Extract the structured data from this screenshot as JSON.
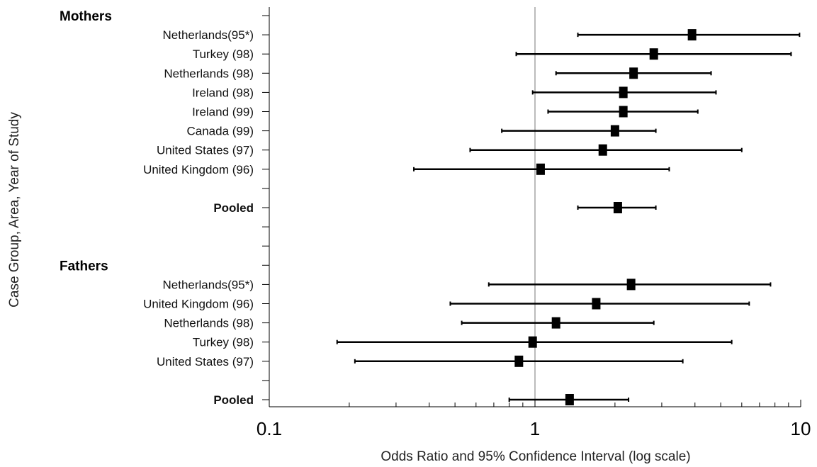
{
  "chart_data": {
    "type": "forest",
    "xlabel": "Odds Ratio and 95% Confidence Interval (log scale)",
    "ylabel": "Case Group, Area, Year of Study",
    "x_scale": "log",
    "xlim": [
      0.1,
      10
    ],
    "x_ticks": [
      "0.1",
      "1",
      "10"
    ],
    "reference_line": 1,
    "groups": [
      {
        "name": "Mothers",
        "studies": [
          {
            "label": "Netherlands(95*)",
            "or": 3.9,
            "lower": 1.45,
            "upper": 9.9
          },
          {
            "label": "Turkey (98)",
            "or": 2.8,
            "lower": 0.85,
            "upper": 9.2
          },
          {
            "label": "Netherlands (98)",
            "or": 2.35,
            "lower": 1.2,
            "upper": 4.6
          },
          {
            "label": "Ireland (98)",
            "or": 2.15,
            "lower": 0.98,
            "upper": 4.8
          },
          {
            "label": "Ireland (99)",
            "or": 2.15,
            "lower": 1.12,
            "upper": 4.1
          },
          {
            "label": "Canada (99)",
            "or": 2.0,
            "lower": 0.75,
            "upper": 2.85
          },
          {
            "label": "United States (97)",
            "or": 1.8,
            "lower": 0.57,
            "upper": 6.0
          },
          {
            "label": "United Kingdom (96)",
            "or": 1.05,
            "lower": 0.35,
            "upper": 3.2
          }
        ],
        "pooled": {
          "label": "Pooled",
          "or": 2.05,
          "lower": 1.45,
          "upper": 2.85
        }
      },
      {
        "name": "Fathers",
        "studies": [
          {
            "label": "Netherlands(95*)",
            "or": 2.3,
            "lower": 0.67,
            "upper": 7.7
          },
          {
            "label": "United Kingdom (96)",
            "or": 1.7,
            "lower": 0.48,
            "upper": 6.4
          },
          {
            "label": "Netherlands (98)",
            "or": 1.2,
            "lower": 0.53,
            "upper": 2.8
          },
          {
            "label": "Turkey (98)",
            "or": 0.98,
            "lower": 0.18,
            "upper": 5.5
          },
          {
            "label": "United States (97)",
            "or": 0.87,
            "lower": 0.21,
            "upper": 3.6
          }
        ],
        "pooled": {
          "label": "Pooled",
          "or": 1.35,
          "lower": 0.8,
          "upper": 2.25
        }
      }
    ]
  }
}
